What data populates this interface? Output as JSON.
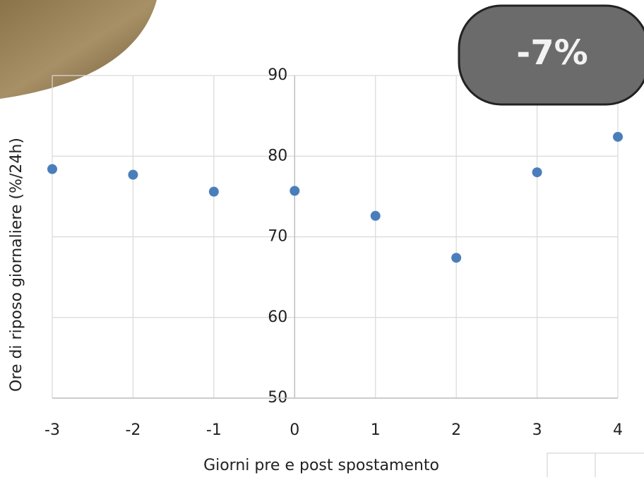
{
  "chart_data": {
    "type": "scatter",
    "x_label": "Giorni pre e post spostamento",
    "y_label": "Ore di riposo giornaliere (%/24h)",
    "annotation": "-7%",
    "x": [
      -3,
      -2,
      -1,
      0,
      1,
      2,
      3,
      4
    ],
    "values": [
      78.4,
      77.7,
      75.6,
      75.7,
      72.6,
      67.4,
      78.0,
      82.4
    ],
    "color": "#4a7ebb",
    "xlim": [
      -3,
      4
    ],
    "xticks": [
      -3,
      -2,
      -1,
      0,
      1,
      2,
      3,
      4
    ],
    "ylim": [
      50,
      90
    ],
    "yticks": [
      50,
      60,
      70,
      80,
      90
    ],
    "grid": true
  }
}
